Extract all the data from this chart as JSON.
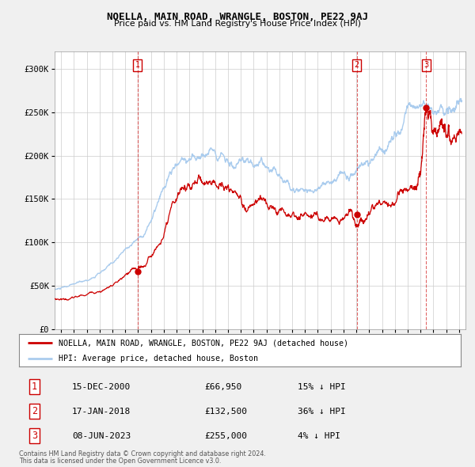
{
  "title": "NOELLA, MAIN ROAD, WRANGLE, BOSTON, PE22 9AJ",
  "subtitle": "Price paid vs. HM Land Registry's House Price Index (HPI)",
  "legend_label_red": "NOELLA, MAIN ROAD, WRANGLE, BOSTON, PE22 9AJ (detached house)",
  "legend_label_blue": "HPI: Average price, detached house, Boston",
  "footer_line1": "Contains HM Land Registry data © Crown copyright and database right 2024.",
  "footer_line2": "This data is licensed under the Open Government Licence v3.0.",
  "transactions": [
    {
      "num": 1,
      "date": "15-DEC-2000",
      "price": "£66,950",
      "hpi": "15% ↓ HPI",
      "year": 2000.96
    },
    {
      "num": 2,
      "date": "17-JAN-2018",
      "price": "£132,500",
      "hpi": "36% ↓ HPI",
      "year": 2018.04
    },
    {
      "num": 3,
      "date": "08-JUN-2023",
      "price": "£255,000",
      "hpi": "4% ↓ HPI",
      "year": 2023.44
    }
  ],
  "transaction_prices": [
    66950,
    132500,
    255000
  ],
  "ylim": [
    0,
    320000
  ],
  "xlim_start": 1994.5,
  "xlim_end": 2026.5,
  "yticks": [
    0,
    50000,
    100000,
    150000,
    200000,
    250000,
    300000
  ],
  "bg_color": "#f0f0f0",
  "plot_bg_color": "#ffffff",
  "red_color": "#cc0000",
  "blue_color": "#aaccee",
  "grid_color": "#cccccc"
}
